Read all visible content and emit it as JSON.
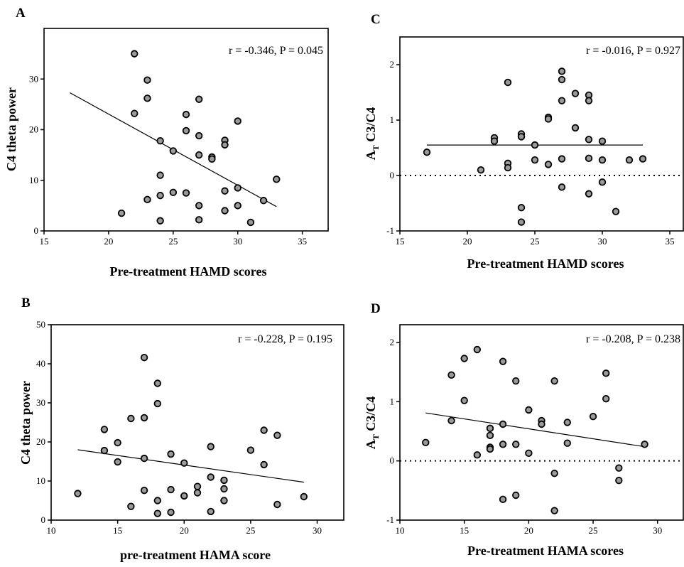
{
  "chart_data": [
    {
      "type": "scatter",
      "panel": "A",
      "xlabel": "Pre-treatment HAMD scores",
      "ylabel": "C4  theta power",
      "annotation": "r = -0.346, P = 0.045",
      "xlim": [
        15,
        37
      ],
      "ylim": [
        0,
        40
      ],
      "xticks": [
        15,
        20,
        25,
        30,
        35
      ],
      "yticks": [
        0,
        10,
        20,
        30
      ],
      "x": [
        22,
        22,
        23,
        23,
        24,
        24,
        24,
        24,
        25,
        25,
        26,
        26,
        26,
        27,
        27,
        27,
        27,
        27,
        28,
        28,
        29,
        29,
        29,
        29,
        30,
        30,
        30,
        31,
        21,
        23,
        32,
        33
      ],
      "y": [
        35,
        23.2,
        29.8,
        26.2,
        17.8,
        11,
        7,
        2,
        15.8,
        7.6,
        23,
        19.8,
        7.5,
        26,
        18.8,
        15,
        5,
        2.2,
        14.6,
        14.2,
        17.9,
        17,
        7.9,
        4,
        21.7,
        8.5,
        5,
        1.7,
        3.5,
        6.2,
        6,
        10.2
      ],
      "trendline": {
        "x": [
          17,
          33
        ],
        "y": [
          27.3,
          4.8
        ]
      },
      "reference_zero_line": false
    },
    {
      "type": "scatter",
      "panel": "B",
      "xlabel": "pre-treatment HAMA score",
      "ylabel": "C4  theta power",
      "annotation": "r = -0.228, P = 0.195",
      "xlim": [
        10,
        32
      ],
      "ylim": [
        0,
        50
      ],
      "xticks": [
        10,
        15,
        20,
        25,
        30
      ],
      "yticks": [
        0,
        10,
        20,
        30,
        40,
        50
      ],
      "x": [
        12,
        14,
        14,
        15,
        15,
        16,
        16,
        17,
        17,
        17,
        17,
        18,
        18,
        18,
        18,
        19,
        19,
        19,
        20,
        20,
        21,
        21,
        22,
        22,
        22,
        23,
        23,
        23,
        25,
        26,
        26,
        27,
        27,
        29
      ],
      "y": [
        6.8,
        23.2,
        17.8,
        19.8,
        14.9,
        26,
        3.5,
        41.6,
        26.2,
        15.8,
        7.6,
        35,
        29.8,
        5,
        1.7,
        16.9,
        7.8,
        2,
        14.6,
        6.2,
        8.6,
        7,
        18.8,
        11,
        2.2,
        10.2,
        8,
        5,
        17.9,
        23,
        14.2,
        21.7,
        4,
        6
      ],
      "trendline": {
        "x": [
          12,
          29
        ],
        "y": [
          18,
          9.7
        ]
      },
      "reference_zero_line": false
    },
    {
      "type": "scatter",
      "panel": "C",
      "xlabel": "Pre-treatment HAMD scores",
      "ylabel": "A_T C3/C4",
      "ylabel_main": "A",
      "ylabel_sub": "T",
      "ylabel_rest": " C3/C4",
      "annotation": "r = -0.016, P = 0.927",
      "xlim": [
        15,
        36
      ],
      "ylim": [
        -1,
        2.5
      ],
      "xticks": [
        15,
        20,
        25,
        30,
        35
      ],
      "yticks": [
        -1,
        0,
        1,
        2
      ],
      "x": [
        17,
        21,
        22,
        22,
        23,
        23,
        23,
        24,
        24,
        24,
        24,
        25,
        25,
        26,
        26,
        26,
        27,
        27,
        27,
        27,
        27,
        28,
        28,
        29,
        29,
        29,
        29,
        29,
        30,
        30,
        30,
        31,
        32,
        33
      ],
      "y": [
        0.42,
        0.1,
        0.68,
        0.62,
        1.68,
        0.22,
        0.14,
        0.75,
        0.7,
        -0.58,
        -0.84,
        0.55,
        0.28,
        1.05,
        1.02,
        0.2,
        1.88,
        1.73,
        1.35,
        0.3,
        -0.21,
        1.48,
        0.86,
        1.45,
        1.35,
        0.65,
        0.31,
        -0.33,
        0.62,
        0.28,
        -0.12,
        -0.65,
        0.28,
        0.3
      ],
      "trendline": {
        "x": [
          17,
          33
        ],
        "y": [
          0.55,
          0.55
        ]
      },
      "reference_zero_line": true
    },
    {
      "type": "scatter",
      "panel": "D",
      "xlabel": "Pre-treatment HAMA scores",
      "ylabel": "A_T C3/C4",
      "ylabel_main": "A",
      "ylabel_sub": "T",
      "ylabel_rest": " C3/C4",
      "annotation": "r = -0.208, P = 0.238",
      "xlim": [
        10,
        32
      ],
      "ylim": [
        -1,
        2.3
      ],
      "xticks": [
        10,
        15,
        20,
        25,
        30
      ],
      "yticks": [
        -1,
        0,
        1,
        2
      ],
      "x": [
        12,
        14,
        14,
        15,
        15,
        16,
        16,
        17,
        17,
        17,
        17,
        18,
        18,
        18,
        18,
        19,
        19,
        19,
        20,
        20,
        21,
        21,
        22,
        22,
        22,
        23,
        23,
        25,
        26,
        26,
        27,
        27,
        29
      ],
      "y": [
        0.31,
        1.45,
        0.68,
        1.73,
        1.02,
        1.88,
        0.1,
        0.55,
        0.43,
        0.23,
        0.2,
        1.68,
        0.62,
        0.28,
        -0.65,
        1.35,
        0.28,
        -0.58,
        0.86,
        0.13,
        0.68,
        0.62,
        1.35,
        -0.21,
        -0.84,
        0.65,
        0.3,
        0.75,
        1.48,
        1.05,
        -0.12,
        -0.33,
        0.28
      ],
      "trendline": {
        "x": [
          12,
          29
        ],
        "y": [
          0.81,
          0.24
        ]
      },
      "reference_zero_line": true
    }
  ]
}
